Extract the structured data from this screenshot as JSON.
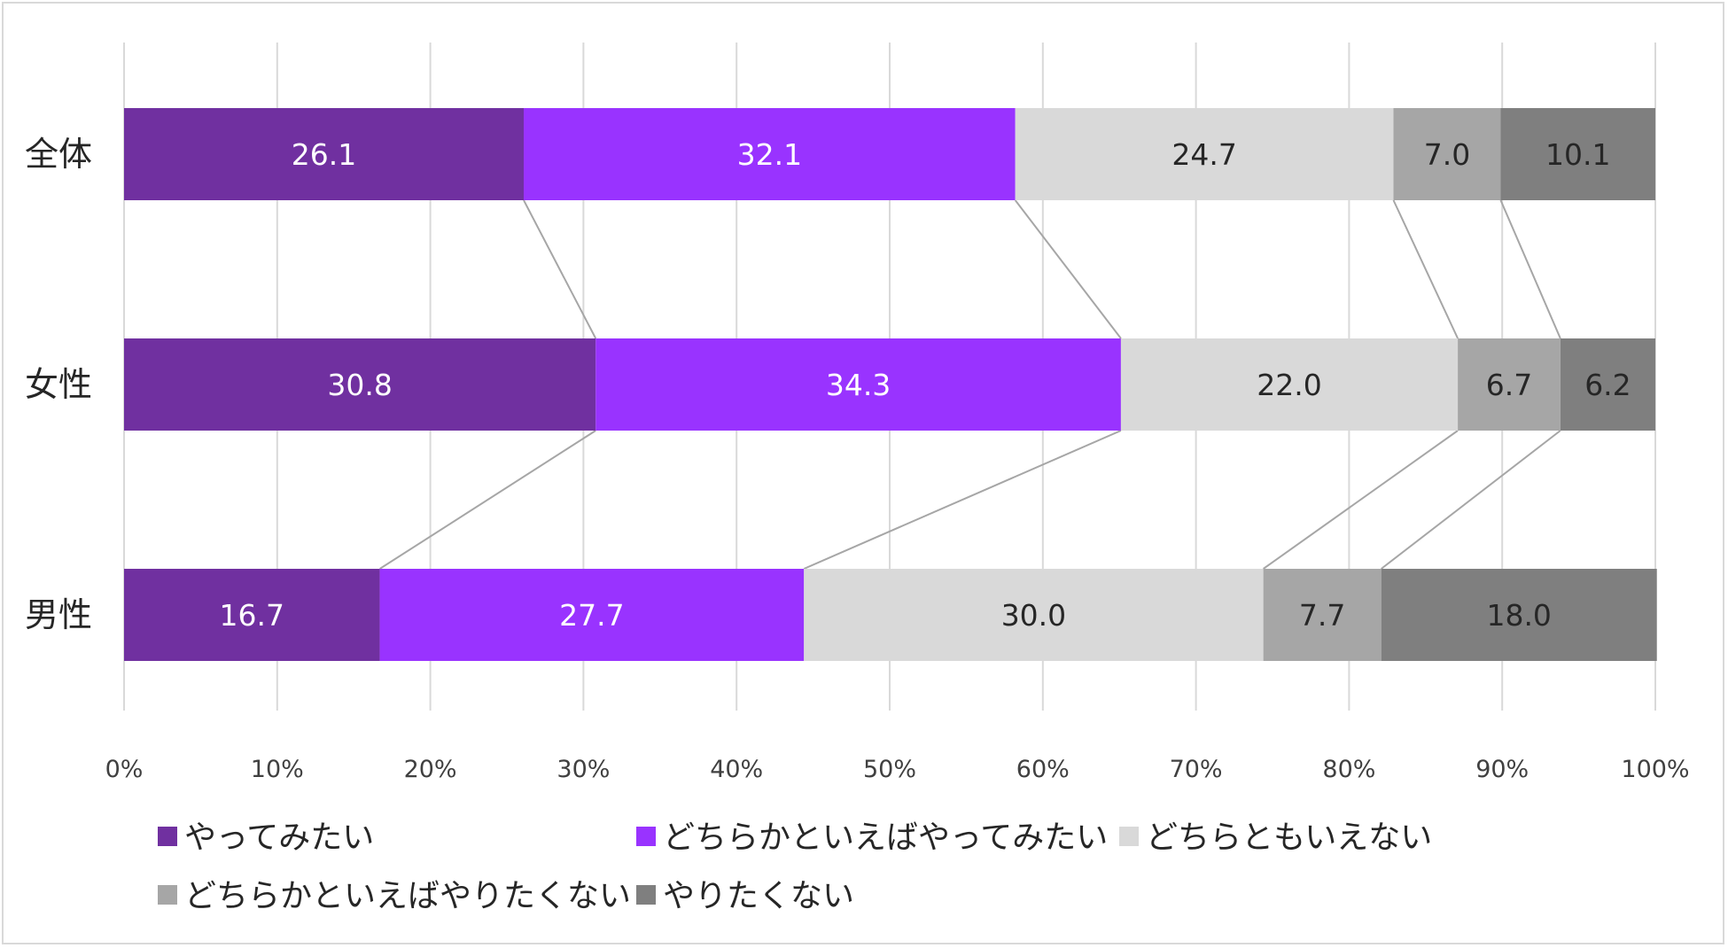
{
  "chart_data": {
    "type": "bar",
    "orientation": "horizontal",
    "stacked": true,
    "percent_scale": true,
    "categories": [
      "全体",
      "女性",
      "男性"
    ],
    "series": [
      {
        "name": "やってみたい",
        "values": [
          26.1,
          30.8,
          16.7
        ],
        "color": "#7030a0",
        "label_color": "#ffffff"
      },
      {
        "name": "どちらかといえばやってみたい",
        "values": [
          32.1,
          34.3,
          27.7
        ],
        "color": "#9933ff",
        "label_color": "#ffffff"
      },
      {
        "name": "どちらともいえない",
        "values": [
          24.7,
          22.0,
          30.0
        ],
        "color": "#d9d9d9",
        "label_color": "#262626"
      },
      {
        "name": "どちらかといえばやりたくない",
        "values": [
          7.0,
          6.7,
          7.7
        ],
        "color": "#a6a6a6",
        "label_color": "#262626"
      },
      {
        "name": "やりたくない",
        "values": [
          10.1,
          6.2,
          18.0
        ],
        "color": "#7f7f7f",
        "label_color": "#262626"
      }
    ],
    "x_ticks": [
      "0%",
      "10%",
      "20%",
      "30%",
      "40%",
      "50%",
      "60%",
      "70%",
      "80%",
      "90%",
      "100%"
    ],
    "xlim": [
      0,
      100
    ],
    "grid": true,
    "series_lines": true,
    "legend_position": "bottom",
    "title": "",
    "xlabel": "",
    "ylabel": ""
  }
}
